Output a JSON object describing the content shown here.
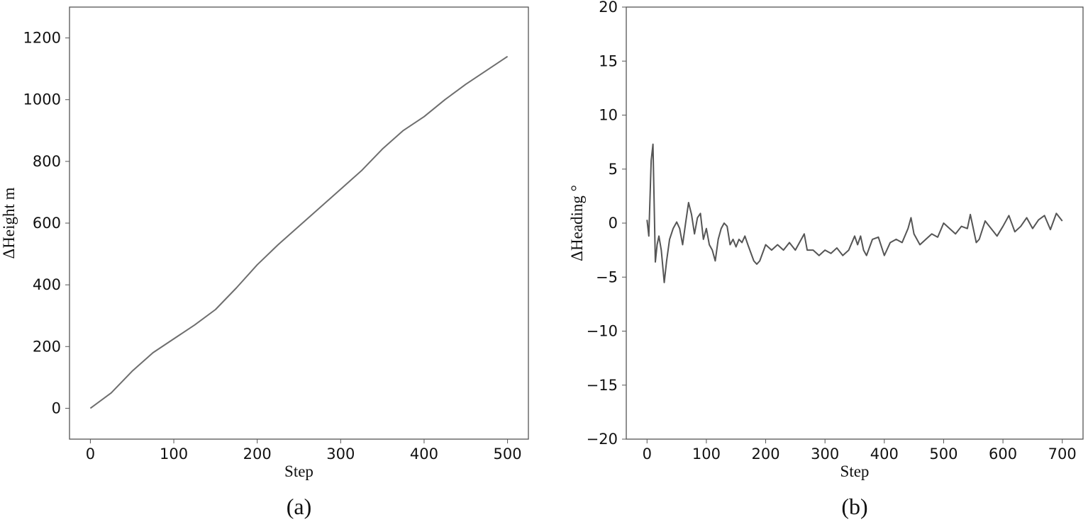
{
  "chart_data": [
    {
      "type": "line",
      "caption": "(a)",
      "x_label": "Step",
      "y_label": "ΔHeight m",
      "xlim": [
        -25,
        525
      ],
      "ylim": [
        -100,
        1300
      ],
      "xticks": [
        0,
        100,
        200,
        300,
        400,
        500
      ],
      "yticks": [
        0,
        200,
        400,
        600,
        800,
        1000,
        1200
      ],
      "x": [
        0,
        25,
        50,
        75,
        100,
        125,
        150,
        175,
        200,
        225,
        250,
        275,
        300,
        325,
        350,
        375,
        400,
        425,
        450,
        475,
        500
      ],
      "series": [
        {
          "color": "#6e6e6e",
          "values": [
            0,
            50,
            120,
            180,
            225,
            270,
            320,
            390,
            465,
            530,
            590,
            650,
            710,
            770,
            840,
            900,
            945,
            1000,
            1050,
            1095,
            1140
          ]
        }
      ]
    },
    {
      "type": "line",
      "caption": "(b)",
      "x_label": "Step",
      "y_label": "ΔHeading °",
      "xlim": [
        -35,
        735
      ],
      "ylim": [
        -20,
        20
      ],
      "xticks": [
        0,
        100,
        200,
        300,
        400,
        500,
        600,
        700
      ],
      "yticks": [
        {
          "value": -20,
          "label": "−20"
        },
        {
          "value": -15,
          "label": "−15"
        },
        {
          "value": -10,
          "label": "−10"
        },
        {
          "value": -5,
          "label": "−5"
        },
        0,
        5,
        10,
        15,
        20
      ],
      "x": [
        0,
        3,
        7,
        10,
        14,
        17,
        20,
        24,
        29,
        33,
        38,
        44,
        50,
        55,
        60,
        65,
        70,
        75,
        80,
        85,
        90,
        95,
        100,
        105,
        110,
        115,
        120,
        125,
        130,
        135,
        140,
        145,
        150,
        155,
        160,
        165,
        170,
        180,
        185,
        190,
        200,
        210,
        220,
        230,
        240,
        250,
        260,
        265,
        270,
        280,
        290,
        300,
        310,
        320,
        330,
        340,
        350,
        355,
        360,
        365,
        370,
        380,
        390,
        400,
        410,
        420,
        430,
        440,
        445,
        450,
        460,
        470,
        480,
        490,
        500,
        510,
        520,
        530,
        540,
        545,
        550,
        555,
        560,
        570,
        580,
        590,
        600,
        610,
        620,
        630,
        640,
        650,
        660,
        670,
        680,
        690,
        700
      ],
      "series": [
        {
          "color": "#555555",
          "values": [
            0.3,
            -1.2,
            5.8,
            7.3,
            -3.6,
            -2.0,
            -1.2,
            -2.5,
            -5.5,
            -3.5,
            -1.5,
            -0.5,
            0.1,
            -0.5,
            -2.0,
            0,
            1.9,
            0.8,
            -1.0,
            0.5,
            0.9,
            -1.5,
            -0.5,
            -2.0,
            -2.5,
            -3.5,
            -1.5,
            -0.5,
            0,
            -0.3,
            -2.0,
            -1.5,
            -2.2,
            -1.5,
            -1.8,
            -1.2,
            -2.0,
            -3.5,
            -3.8,
            -3.5,
            -2.0,
            -2.5,
            -2.0,
            -2.5,
            -1.8,
            -2.5,
            -1.5,
            -1.0,
            -2.5,
            -2.5,
            -3.0,
            -2.5,
            -2.8,
            -2.3,
            -3.0,
            -2.5,
            -1.2,
            -2.0,
            -1.2,
            -2.5,
            -3.0,
            -1.5,
            -1.3,
            -3.0,
            -1.8,
            -1.5,
            -1.8,
            -0.5,
            0.5,
            -1.0,
            -2.0,
            -1.5,
            -1.0,
            -1.3,
            0,
            -0.5,
            -1.0,
            -0.3,
            -0.5,
            0.8,
            -0.5,
            -1.8,
            -1.5,
            0.2,
            -0.5,
            -1.2,
            -0.3,
            0.7,
            -0.8,
            -0.3,
            0.5,
            -0.5,
            0.3,
            0.7,
            -0.6,
            0.9,
            0.2
          ]
        }
      ]
    }
  ]
}
